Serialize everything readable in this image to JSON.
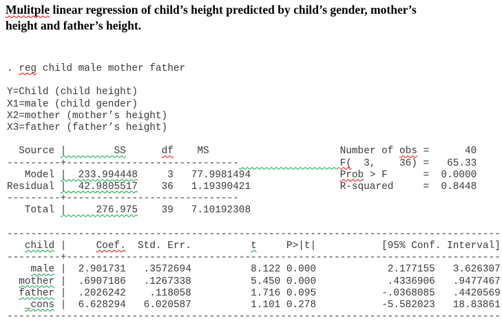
{
  "page": {
    "background": "#ffffff",
    "title_color": "#000000",
    "mono_color": "#383838",
    "squiggle_red": "#e00000",
    "squiggle_green": "#00a33f"
  },
  "title": {
    "lines": [
      {
        "segments": [
          {
            "t": "Mulitple",
            "u": "red"
          },
          {
            "t": " linear regression of child’s height predicted by child’s gender, mother’s"
          }
        ]
      },
      {
        "segments": [
          {
            "t": "height and father’s height."
          }
        ]
      }
    ]
  },
  "stata_output": {
    "command": "reg child male mother father",
    "stats": {
      "number_of_obs": "40",
      "F_df": "F(  3,    36)",
      "F_value": "65.33",
      "prob_f": "0.0000",
      "r_squared": "0.8448"
    },
    "anova": {
      "columns": [
        "Source",
        "SS",
        "df",
        "MS"
      ],
      "rows": [
        {
          "source": "Model",
          "ss": "233.994448",
          "df": "3",
          "ms": "77.9981494"
        },
        {
          "source": "Residual",
          "ss": "42.9805517",
          "df": "36",
          "ms": "1.19390421"
        },
        {
          "source": "Total",
          "ss": "276.975",
          "df": "39",
          "ms": "7.10192308"
        }
      ]
    },
    "coefficients": {
      "columns": [
        "child",
        "Coef.",
        "Std. Err.",
        "t",
        "P>|t|",
        "[95% Conf. Interval]"
      ],
      "rows": [
        {
          "var": "male",
          "coef": "2.901731",
          "std_err": ".3572694",
          "t": "8.122",
          "p": "0.000",
          "ci_low": "2.177155",
          "ci_high": "3.626307"
        },
        {
          "var": "mother",
          "coef": ".6907186",
          "std_err": ".1267338",
          "t": "5.450",
          "p": "0.000",
          "ci_low": ".4336906",
          "ci_high": ".9477467"
        },
        {
          "var": "father",
          "coef": ".2026242",
          "std_err": ".118058",
          "t": "1.716",
          "p": "0.095",
          "ci_low": "-.0368085",
          "ci_high": ".4420569"
        },
        {
          "var": "_cons",
          "coef": "6.628294",
          "std_err": "6.020587",
          "t": "1.101",
          "p": "0.278",
          "ci_low": "-5.582023",
          "ci_high": "18.83861"
        }
      ]
    },
    "lines": [
      {
        "segments": [
          {
            "t": ". "
          },
          {
            "t": "reg",
            "u": "red"
          },
          {
            "t": " child male mother father"
          }
        ]
      },
      {
        "segments": [
          {
            "t": ""
          }
        ]
      },
      {
        "segments": [
          {
            "t": "Y=Child (child height)"
          }
        ]
      },
      {
        "segments": [
          {
            "t": "X1=male (child gender)"
          }
        ]
      },
      {
        "segments": [
          {
            "t": "X2=mother (mother’s height)"
          }
        ]
      },
      {
        "segments": [
          {
            "t": "X3=father (father’s height)"
          }
        ]
      },
      {
        "segments": [
          {
            "t": ""
          }
        ]
      },
      {
        "segments": [
          {
            "t": "  Source "
          },
          {
            "t": "|        SS",
            "u": "green"
          },
          {
            "t": "      "
          },
          {
            "t": "df",
            "u": "red"
          },
          {
            "t": "    MS                      Number of "
          },
          {
            "t": "obs",
            "u": "red"
          },
          {
            "t": " =      40"
          }
        ]
      },
      {
        "segments": [
          {
            "t": "---------+-----------------------------"
          },
          {
            "t": "                 ",
            "u": "green"
          },
          {
            "t": "F(",
            "u": "red"
          },
          {
            "t": "  3,    36) =   65.33"
          }
        ]
      },
      {
        "segments": [
          {
            "t": "   Model "
          },
          {
            "t": "|  233.994448",
            "u": "green"
          },
          {
            "t": "     3   77.9981494               "
          },
          {
            "t": "Prob",
            "u": "red"
          },
          {
            "t": " > F      =  0.0000"
          }
        ]
      },
      {
        "segments": [
          {
            "t": "Residual "
          },
          {
            "t": "|  42.9805517",
            "u": "green"
          },
          {
            "t": "    36   1.19390421               "
          },
          {
            "t": "R-squared     =  0.8448"
          }
        ]
      },
      {
        "segments": [
          {
            "t": "---------+-----------------------------"
          }
        ]
      },
      {
        "segments": [
          {
            "t": "   Total "
          },
          {
            "t": "|     276.975",
            "u": "green"
          },
          {
            "t": "    39   7.10192308"
          }
        ]
      },
      {
        "segments": [
          {
            "t": ""
          }
        ]
      },
      {
        "segments": [
          {
            "t": "-----------------------------------------------------------------------------------"
          }
        ]
      },
      {
        "segments": [
          {
            "t": "   "
          },
          {
            "t": "child",
            "u": "green"
          },
          {
            "t": " |     "
          },
          {
            "t": "Coef.",
            "u": "red"
          },
          {
            "t": "  Std. Err.          "
          },
          {
            "t": "t",
            "u": "green"
          },
          {
            "t": "     P>|t|           [95% Conf. Interval]"
          }
        ]
      },
      {
        "segments": [
          {
            "t": "---------+-------------------------------------------------------------------------"
          }
        ]
      },
      {
        "segments": [
          {
            "t": "    "
          },
          {
            "t": "male",
            "u": "green"
          },
          {
            "t": " |  2.901731   .3572694          8.122 0.000            2.177155   3.626307"
          }
        ]
      },
      {
        "segments": [
          {
            "t": "  "
          },
          {
            "t": "mother",
            "u": "green"
          },
          {
            "t": " |  .6907186   .1267338          5.450 0.000            .4336906   .9477467"
          }
        ]
      },
      {
        "segments": [
          {
            "t": "  "
          },
          {
            "t": "father",
            "u": "green"
          },
          {
            "t": " |  .2026242    .118058          1.716 0.095           -.0368085   .4420569"
          }
        ]
      },
      {
        "segments": [
          {
            "t": "   "
          },
          {
            "t": "_cons",
            "u": "green"
          },
          {
            "t": " |  6.628294   6.020587          1.101 0.278           -5.582023   18.83861"
          }
        ]
      },
      {
        "segments": [
          {
            "t": "-----------------------------------------------------------------------------------"
          }
        ]
      }
    ]
  }
}
